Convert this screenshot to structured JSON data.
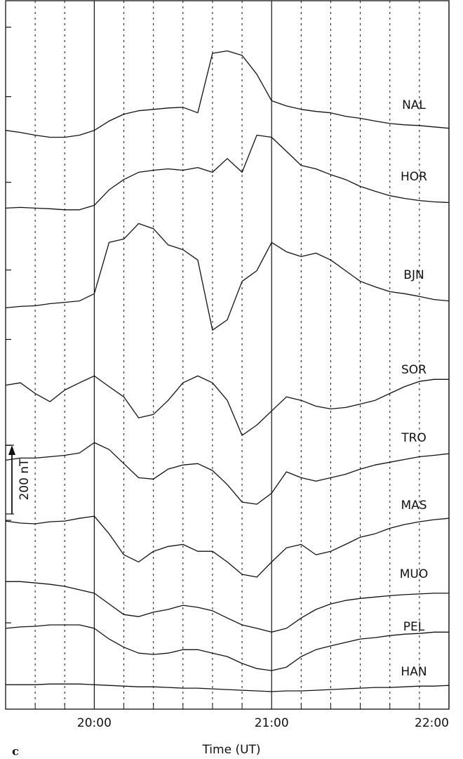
{
  "chart_data": {
    "type": "line",
    "panel_label": "c",
    "x_label": "Time (UT)",
    "x": [
      1170,
      1175,
      1180,
      1185,
      1190,
      1195,
      1200,
      1205,
      1210,
      1215,
      1220,
      1225,
      1230,
      1235,
      1240,
      1245,
      1250,
      1255,
      1260,
      1265,
      1270,
      1275,
      1280,
      1285,
      1290,
      1295,
      1300,
      1305,
      1310,
      1315,
      1320
    ],
    "xlim": [
      1170,
      1320
    ],
    "xticks": [
      {
        "value": 1200,
        "label": "20:00"
      },
      {
        "value": 1260,
        "label": "21:00"
      },
      {
        "value": 1320,
        "label": "22:00"
      }
    ],
    "xminor": [
      1180,
      1190,
      1210,
      1220,
      1230,
      1240,
      1250,
      1270,
      1280,
      1290,
      1300,
      1310
    ],
    "ylim": [
      0,
      2060
    ],
    "ymarks": [
      1983,
      1781,
      1532,
      1277,
      1075,
      767,
      549,
      251
    ],
    "scale_bar": {
      "value": 200,
      "label": "200 nT"
    },
    "grid": true,
    "series": [
      {
        "name": "NAL",
        "color": "#111111",
        "values": [
          1683,
          1677,
          1669,
          1663,
          1663,
          1669,
          1683,
          1710,
          1730,
          1740,
          1744,
          1748,
          1750,
          1734,
          1907,
          1914,
          1901,
          1846,
          1769,
          1754,
          1744,
          1738,
          1734,
          1724,
          1718,
          1710,
          1703,
          1699,
          1697,
          1693,
          1689
        ]
      },
      {
        "name": "HOR",
        "color": "#111111",
        "values": [
          1457,
          1459,
          1457,
          1455,
          1452,
          1452,
          1465,
          1510,
          1540,
          1561,
          1567,
          1571,
          1567,
          1575,
          1561,
          1601,
          1561,
          1669,
          1663,
          1622,
          1581,
          1571,
          1554,
          1540,
          1520,
          1506,
          1493,
          1485,
          1479,
          1475,
          1473
        ]
      },
      {
        "name": "BJN",
        "color": "#111111",
        "values": [
          1167,
          1171,
          1173,
          1179,
          1183,
          1187,
          1208,
          1357,
          1367,
          1412,
          1397,
          1350,
          1336,
          1306,
          1102,
          1132,
          1244,
          1275,
          1357,
          1330,
          1316,
          1326,
          1306,
          1275,
          1244,
          1228,
          1214,
          1208,
          1200,
          1191,
          1187
        ]
      },
      {
        "name": "SOR",
        "color": "#111111",
        "values": [
          942,
          949,
          918,
          894,
          928,
          949,
          969,
          938,
          908,
          847,
          857,
          898,
          949,
          969,
          949,
          898,
          796,
          826,
          867,
          908,
          898,
          881,
          873,
          877,
          887,
          898,
          918,
          938,
          953,
          959,
          959
        ]
      },
      {
        "name": "TRO",
        "color": "#111111",
        "values": [
          724,
          730,
          730,
          734,
          738,
          745,
          775,
          755,
          714,
          673,
          669,
          698,
          710,
          714,
          694,
          653,
          602,
          596,
          628,
          690,
          673,
          663,
          673,
          683,
          698,
          710,
          718,
          726,
          734,
          738,
          743
        ]
      },
      {
        "name": "MAS",
        "color": "#111111",
        "values": [
          547,
          541,
          539,
          545,
          547,
          555,
          561,
          510,
          449,
          428,
          459,
          473,
          479,
          459,
          459,
          428,
          392,
          384,
          428,
          469,
          479,
          449,
          459,
          479,
          500,
          510,
          526,
          537,
          545,
          551,
          555
        ]
      },
      {
        "name": "MUO",
        "color": "#111111",
        "values": [
          371,
          371,
          367,
          363,
          357,
          347,
          337,
          306,
          275,
          269,
          282,
          290,
          302,
          296,
          286,
          265,
          245,
          235,
          224,
          235,
          265,
          290,
          306,
          316,
          322,
          326,
          330,
          333,
          335,
          337,
          337
        ]
      },
      {
        "name": "PEL",
        "color": "#111111",
        "values": [
          235,
          239,
          241,
          245,
          245,
          245,
          235,
          204,
          180,
          163,
          159,
          163,
          173,
          173,
          163,
          153,
          133,
          118,
          112,
          122,
          153,
          173,
          184,
          194,
          204,
          208,
          214,
          218,
          220,
          224,
          224
        ]
      },
      {
        "name": "HAN",
        "color": "#111111",
        "values": [
          71,
          71,
          71,
          73,
          73,
          73,
          71,
          69,
          67,
          65,
          65,
          63,
          61,
          61,
          59,
          57,
          55,
          53,
          51,
          53,
          53,
          55,
          57,
          59,
          61,
          63,
          63,
          65,
          67,
          67,
          69
        ]
      }
    ]
  }
}
